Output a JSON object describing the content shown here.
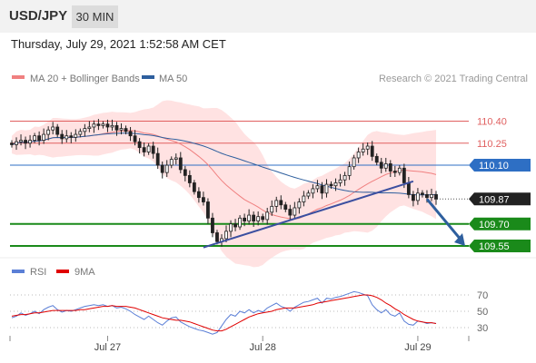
{
  "header": {
    "symbol": "USD/JPY",
    "interval": "30 MIN"
  },
  "datetime": "Thursday, July 29, 2021 1:52:58 AM CET",
  "legend_main": [
    {
      "label": "MA 20 + Bollinger Bands",
      "color": "#f08080"
    },
    {
      "label": "MA 50",
      "color": "#2e5f9e"
    }
  ],
  "copyright": "Research © 2021 Trading Central",
  "legend_rsi": [
    {
      "label": "RSI",
      "color": "#5b7fd6"
    },
    {
      "label": "9MA",
      "color": "#e00000"
    }
  ],
  "colors": {
    "up": "#ffffff",
    "down": "#222222",
    "support": "#1a8a1a",
    "pivot": "#2e6fc4",
    "resistance": "#e06060",
    "arrow": "#2e5f9e"
  },
  "chart_data": {
    "type": "candlestick",
    "ylim": [
      109.47,
      110.57
    ],
    "levels": [
      {
        "value": 110.4,
        "label": "110.40",
        "kind": "resistance"
      },
      {
        "value": 110.25,
        "label": "110.25",
        "kind": "resistance"
      },
      {
        "value": 110.1,
        "label": "110.10",
        "kind": "pivot"
      },
      {
        "value": 109.87,
        "label": "109.87",
        "kind": "last"
      },
      {
        "value": 109.7,
        "label": "109.70",
        "kind": "support"
      },
      {
        "value": 109.55,
        "label": "109.55",
        "kind": "support"
      }
    ],
    "x_ticks": [
      {
        "label": "Jul 27",
        "index": 21
      },
      {
        "label": "Jul 28",
        "index": 55
      },
      {
        "label": "Jul 29",
        "index": 89
      }
    ],
    "closes": [
      110.24,
      110.26,
      110.27,
      110.25,
      110.27,
      110.3,
      110.27,
      110.31,
      110.34,
      110.36,
      110.31,
      110.28,
      110.3,
      110.29,
      110.31,
      110.33,
      110.35,
      110.36,
      110.38,
      110.37,
      110.38,
      110.36,
      110.37,
      110.34,
      110.35,
      110.33,
      110.3,
      110.26,
      110.22,
      110.19,
      110.23,
      110.18,
      110.1,
      110.05,
      110.1,
      110.14,
      110.15,
      110.07,
      110.03,
      109.98,
      109.92,
      109.88,
      109.85,
      109.74,
      109.64,
      109.58,
      109.6,
      109.65,
      109.7,
      109.68,
      109.74,
      109.72,
      109.76,
      109.72,
      109.75,
      109.73,
      109.78,
      109.82,
      109.86,
      109.83,
      109.8,
      109.76,
      109.81,
      109.85,
      109.89,
      109.91,
      109.94,
      109.96,
      109.91,
      109.97,
      109.96,
      109.98,
      110.0,
      110.03,
      110.09,
      110.15,
      110.19,
      110.21,
      110.23,
      110.16,
      110.12,
      110.08,
      110.11,
      110.06,
      110.05,
      110.08,
      109.98,
      109.9,
      109.86,
      109.91,
      109.9,
      109.88,
      109.9,
      109.87
    ],
    "rsi_ticks": [
      70,
      50,
      30
    ],
    "rsi_ylim": [
      20,
      80
    ],
    "rsi": [
      42,
      44,
      48,
      45,
      47,
      50,
      47,
      52,
      55,
      57,
      52,
      49,
      51,
      50,
      52,
      54,
      56,
      57,
      58,
      57,
      58,
      56,
      57,
      54,
      55,
      53,
      50,
      46,
      43,
      40,
      44,
      40,
      36,
      33,
      38,
      42,
      43,
      37,
      34,
      31,
      29,
      27,
      26,
      24,
      22,
      24,
      32,
      40,
      46,
      44,
      50,
      48,
      52,
      48,
      51,
      49,
      54,
      57,
      60,
      56,
      54,
      50,
      55,
      58,
      61,
      62,
      64,
      66,
      60,
      66,
      65,
      67,
      68,
      70,
      72,
      74,
      73,
      71,
      69,
      58,
      52,
      48,
      52,
      46,
      44,
      48,
      38,
      34,
      33,
      38,
      37,
      35,
      36,
      35
    ],
    "rsi_ma": [
      44,
      45,
      46,
      46,
      47,
      48,
      48,
      49,
      50,
      51,
      51,
      51,
      51,
      51,
      51,
      52,
      52,
      53,
      54,
      55,
      56,
      56,
      57,
      56,
      56,
      56,
      55,
      54,
      52,
      50,
      48,
      46,
      44,
      42,
      41,
      40,
      39,
      39,
      38,
      37,
      35,
      33,
      31,
      29,
      27,
      26,
      26,
      28,
      31,
      34,
      37,
      40,
      43,
      45,
      47,
      48,
      49,
      50,
      52,
      53,
      54,
      54,
      54,
      55,
      56,
      57,
      58,
      60,
      61,
      62,
      63,
      64,
      65,
      66,
      67,
      68,
      69,
      70,
      70,
      69,
      67,
      64,
      60,
      57,
      53,
      50,
      46,
      43,
      40,
      38,
      37,
      36,
      36,
      35
    ],
    "ma20_end": 109.99,
    "ma50_end": 109.92
  }
}
